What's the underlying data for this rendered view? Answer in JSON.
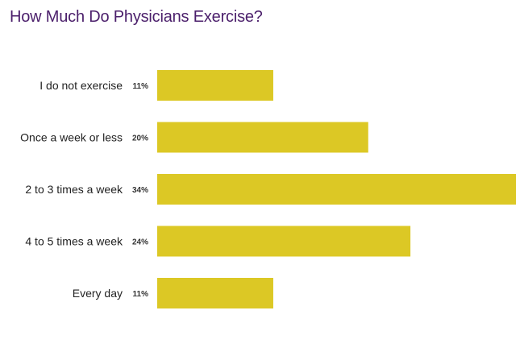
{
  "chart_data": {
    "type": "bar",
    "orientation": "horizontal",
    "title": "How Much Do Physicians Exercise?",
    "categories": [
      "I do not exercise",
      "Once a week or less",
      "2 to 3 times a week",
      "4 to 5 times a week",
      "Every day"
    ],
    "values": [
      11,
      20,
      34,
      24,
      11
    ],
    "value_labels": [
      "11%",
      "20%",
      "34%",
      "24%",
      "11%"
    ],
    "xlim": [
      0,
      34
    ],
    "grid": false,
    "bar_color": "#dcc825"
  }
}
